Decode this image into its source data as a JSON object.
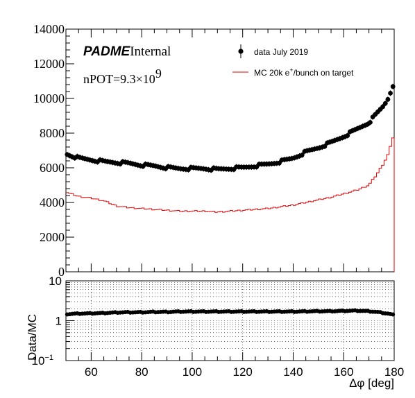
{
  "chart_data": [
    {
      "type": "scatter",
      "panel": "top",
      "title": "",
      "xlabel": "",
      "ylabel": "",
      "xlim": [
        50,
        180
      ],
      "ylim": [
        0,
        14000
      ],
      "y_ticks": [
        0,
        2000,
        4000,
        6000,
        8000,
        10000,
        12000,
        14000
      ],
      "y_tick_labels": [
        "0",
        "2000",
        "4000",
        "6000",
        "8000",
        "10000",
        "12000",
        "14000"
      ],
      "grid": false,
      "legend_position": "top-right",
      "annotations": {
        "brand_bold": "PADME",
        "brand_rest": "Internal",
        "npot_main": "nPOT=9.3×10",
        "npot_exp": "9"
      },
      "legend": [
        {
          "label": "data July 2019",
          "marker": "point-with-error"
        },
        {
          "label_prefix": "MC 20k e",
          "label_sup": "+",
          "label_suffix": "/bunch on target",
          "marker": "line"
        }
      ],
      "series": [
        {
          "name": "data July 2019",
          "style": "points",
          "color": "#000000",
          "x": [
            50,
            55,
            60,
            65,
            70,
            75,
            80,
            85,
            90,
            95,
            100,
            105,
            110,
            115,
            120,
            125,
            130,
            135,
            140,
            145,
            150,
            155,
            160,
            165,
            170,
            173,
            176,
            178,
            179,
            180
          ],
          "y": [
            6800,
            6550,
            6450,
            6350,
            6300,
            6250,
            6150,
            6100,
            6000,
            5950,
            5950,
            5950,
            5900,
            5950,
            6000,
            6100,
            6200,
            6350,
            6550,
            6900,
            7150,
            7450,
            7800,
            8200,
            8600,
            9100,
            9600,
            10100,
            10600,
            10900
          ]
        },
        {
          "name": "MC 20k e+/bunch on target",
          "style": "step",
          "color": "#e00000",
          "x": [
            50,
            55,
            60,
            65,
            70,
            75,
            80,
            85,
            90,
            95,
            100,
            105,
            110,
            115,
            120,
            125,
            130,
            135,
            140,
            145,
            150,
            155,
            160,
            165,
            170,
            173,
            176,
            178,
            179,
            180
          ],
          "y": [
            4600,
            4350,
            4250,
            4100,
            3800,
            3700,
            3650,
            3600,
            3550,
            3500,
            3500,
            3500,
            3450,
            3500,
            3550,
            3600,
            3650,
            3750,
            3850,
            4000,
            4150,
            4300,
            4500,
            4700,
            5000,
            5600,
            6300,
            6900,
            7500,
            8000
          ]
        }
      ]
    },
    {
      "type": "scatter",
      "panel": "bottom",
      "title": "",
      "xlabel": "Δφ [deg]",
      "ylabel": "Data/MC",
      "xlim": [
        50,
        180
      ],
      "ylim": [
        0.1,
        10
      ],
      "log_y": true,
      "x_ticks": [
        60,
        80,
        100,
        120,
        140,
        160,
        180
      ],
      "x_tick_labels": [
        "60",
        "80",
        "100",
        "120",
        "140",
        "160",
        "180"
      ],
      "y_tick_labels": [
        {
          "value": 10,
          "label": "10",
          "exp": ""
        },
        {
          "value": 1,
          "label": "1",
          "exp": ""
        },
        {
          "value": 0.1,
          "label": "10",
          "exp": "−1"
        }
      ],
      "grid": true,
      "series": [
        {
          "name": "",
          "style": "points",
          "color": "#000000",
          "x": [
            50,
            55,
            60,
            65,
            70,
            75,
            80,
            85,
            90,
            95,
            100,
            105,
            110,
            115,
            120,
            125,
            130,
            135,
            140,
            145,
            150,
            155,
            160,
            165,
            170,
            173,
            176,
            178,
            179,
            180
          ],
          "y": [
            1.45,
            1.5,
            1.52,
            1.55,
            1.6,
            1.62,
            1.62,
            1.65,
            1.65,
            1.68,
            1.68,
            1.68,
            1.68,
            1.68,
            1.68,
            1.68,
            1.68,
            1.68,
            1.68,
            1.7,
            1.72,
            1.72,
            1.75,
            1.78,
            1.72,
            1.65,
            1.55,
            1.48,
            1.42,
            1.38
          ]
        }
      ]
    }
  ]
}
